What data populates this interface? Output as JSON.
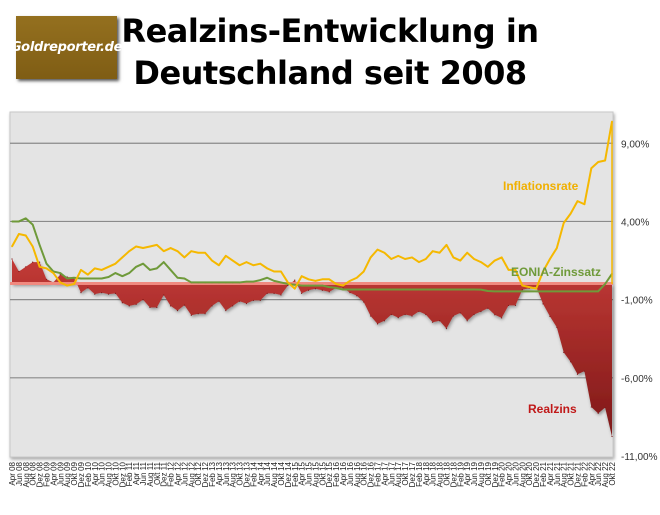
{
  "logo": {
    "text": "Goldreporter.de"
  },
  "chart_data": {
    "type": "line",
    "title": "Realzins-Entwicklung in Deutschland seit 2008",
    "title_lines": [
      "Realzins-Entwicklung in",
      "Deutschland seit 2008"
    ],
    "xlabel": "",
    "ylabel": "",
    "ylim": [
      -11,
      11
    ],
    "yticks": [
      9,
      4,
      -1,
      -6,
      -11
    ],
    "ytick_labels": [
      "9,00%",
      "4,00%",
      "-1,00%",
      "-6,00%",
      "-11,00%"
    ],
    "grid": true,
    "categories": [
      "Apr 08",
      "Jun 08",
      "Aug 08",
      "Okt 08",
      "Dez 08",
      "Feb 09",
      "Apr 09",
      "Jun 09",
      "Aug 09",
      "Okt 09",
      "Dez 09",
      "Feb 10",
      "Apr 10",
      "Jun 10",
      "Aug 10",
      "Okt 10",
      "Dez 10",
      "Feb 11",
      "Apr 11",
      "Jun 11",
      "Aug 11",
      "Okt 11",
      "Dez 11",
      "Feb 12",
      "Apr 12",
      "Jun 12",
      "Aug 12",
      "Okt 12",
      "Dez 12",
      "Feb 13",
      "Apr 13",
      "Jun 13",
      "Aug 13",
      "Okt 13",
      "Dez 13",
      "Feb 14",
      "Apr 14",
      "Jun 14",
      "Aug 14",
      "Okt 14",
      "Dez 14",
      "Feb 15",
      "Apr 15",
      "Jun 15",
      "Aug 15",
      "Okt 15",
      "Dez 15",
      "Feb 16",
      "Apr 16",
      "Jun 16",
      "Aug 16",
      "Okt 16",
      "Dez 16",
      "Feb 17",
      "Apr 17",
      "Jun 17",
      "Aug 17",
      "Okt 17",
      "Dez 17",
      "Feb 18",
      "Apr 18",
      "Jun 18",
      "Aug 18",
      "Okt 18",
      "Dez 18",
      "Feb 19",
      "Apr 19",
      "Jun 19",
      "Aug 19",
      "Okt 19",
      "Dez 19",
      "Feb 20",
      "Apr 20",
      "Jun 20",
      "Aug 20",
      "Okt 20",
      "Dez 20",
      "Feb 21",
      "Apr 21",
      "Jun 21",
      "Aug 21",
      "Okt 21",
      "Dez 21",
      "Feb 22",
      "Apr 22",
      "Jun 22",
      "Aug 22",
      "Okt 22"
    ],
    "series": [
      {
        "name": "Inflationsrate",
        "type": "line",
        "color": "#f5b800",
        "values": [
          2.4,
          3.2,
          3.1,
          2.4,
          1.1,
          1.0,
          0.7,
          0.1,
          -0.1,
          0.0,
          0.9,
          0.6,
          1.0,
          0.9,
          1.1,
          1.3,
          1.7,
          2.1,
          2.4,
          2.3,
          2.4,
          2.5,
          2.1,
          2.3,
          2.1,
          1.7,
          2.1,
          2.0,
          2.0,
          1.5,
          1.2,
          1.8,
          1.5,
          1.2,
          1.4,
          1.2,
          1.3,
          1.0,
          0.8,
          0.8,
          0.1,
          -0.3,
          0.5,
          0.3,
          0.2,
          0.3,
          0.3,
          0.0,
          -0.1,
          0.2,
          0.4,
          0.8,
          1.7,
          2.2,
          2.0,
          1.6,
          1.8,
          1.6,
          1.7,
          1.4,
          1.6,
          2.1,
          2.0,
          2.5,
          1.7,
          1.5,
          2.0,
          1.6,
          1.4,
          1.1,
          1.5,
          1.7,
          0.9,
          0.9,
          -0.1,
          -0.2,
          -0.3,
          0.8,
          1.6,
          2.3,
          3.9,
          4.5,
          5.3,
          5.1,
          7.4,
          7.8,
          7.9,
          10.4
        ]
      },
      {
        "name": "EONIA-Zinssatz",
        "type": "line",
        "color": "#6f9a3a",
        "values": [
          4.0,
          4.0,
          4.2,
          3.8,
          2.5,
          1.3,
          0.8,
          0.7,
          0.35,
          0.4,
          0.35,
          0.35,
          0.35,
          0.35,
          0.45,
          0.7,
          0.5,
          0.7,
          1.1,
          1.3,
          0.9,
          1.0,
          1.4,
          0.9,
          0.4,
          0.35,
          0.1,
          0.1,
          0.1,
          0.1,
          0.1,
          0.1,
          0.1,
          0.1,
          0.15,
          0.15,
          0.25,
          0.4,
          0.2,
          0.1,
          0.0,
          -0.05,
          -0.1,
          -0.1,
          -0.1,
          -0.1,
          -0.2,
          -0.25,
          -0.35,
          -0.35,
          -0.35,
          -0.35,
          -0.35,
          -0.35,
          -0.35,
          -0.35,
          -0.35,
          -0.35,
          -0.35,
          -0.35,
          -0.35,
          -0.35,
          -0.35,
          -0.35,
          -0.35,
          -0.35,
          -0.35,
          -0.35,
          -0.36,
          -0.45,
          -0.47,
          -0.47,
          -0.47,
          -0.47,
          -0.47,
          -0.47,
          -0.47,
          -0.47,
          -0.47,
          -0.47,
          -0.47,
          -0.47,
          -0.47,
          -0.47,
          -0.47,
          -0.47,
          0.0,
          0.65
        ]
      },
      {
        "name": "Realzins",
        "type": "area",
        "color": "#b02a2a",
        "values": [
          1.6,
          0.8,
          1.1,
          1.4,
          1.4,
          0.3,
          0.1,
          0.6,
          0.45,
          0.4,
          -0.55,
          -0.25,
          -0.65,
          -0.55,
          -0.65,
          -0.6,
          -1.2,
          -1.4,
          -1.3,
          -1.0,
          -1.5,
          -1.5,
          -0.7,
          -1.4,
          -1.7,
          -1.35,
          -2.0,
          -1.9,
          -1.9,
          -1.4,
          -1.1,
          -1.7,
          -1.4,
          -1.1,
          -1.25,
          -1.05,
          -1.05,
          -0.6,
          -0.6,
          -0.7,
          -0.1,
          0.25,
          -0.6,
          -0.4,
          -0.3,
          -0.4,
          -0.5,
          -0.25,
          -0.25,
          -0.55,
          -0.75,
          -1.15,
          -2.05,
          -2.55,
          -2.35,
          -1.95,
          -2.15,
          -1.95,
          -2.05,
          -1.75,
          -1.95,
          -2.45,
          -2.35,
          -2.85,
          -2.05,
          -1.85,
          -2.35,
          -1.95,
          -1.76,
          -1.55,
          -1.97,
          -2.17,
          -1.37,
          -1.37,
          -0.37,
          -0.27,
          -0.17,
          -1.27,
          -2.07,
          -2.77,
          -4.37,
          -4.97,
          -5.77,
          -5.57,
          -7.87,
          -8.27,
          -7.9,
          -9.75
        ]
      }
    ],
    "legend": "inline-labels-right"
  }
}
